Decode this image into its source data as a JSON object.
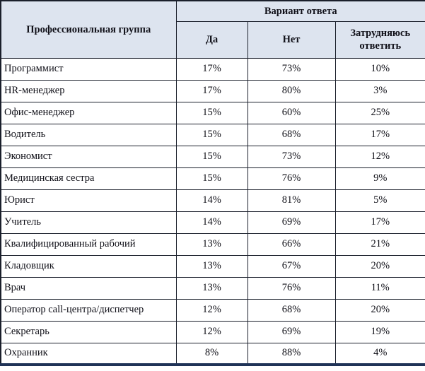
{
  "colors": {
    "header_bg": "#dde4ef",
    "grid_border": "#1a1f2b",
    "bottom_border": "#1f3357",
    "text": "#101018",
    "row_bg": "#ffffff"
  },
  "table": {
    "col1_header": "Профессиональная группа",
    "group_header": "Вариант ответа",
    "sub_headers": [
      "Да",
      "Нет",
      "Затрудняюсь ответить"
    ],
    "rows": [
      {
        "label": "Программист",
        "yes": "17%",
        "no": "73%",
        "dk": "10%"
      },
      {
        "label": "HR-менеджер",
        "yes": "17%",
        "no": "80%",
        "dk": "3%"
      },
      {
        "label": "Офис-менеджер",
        "yes": "15%",
        "no": "60%",
        "dk": "25%"
      },
      {
        "label": "Водитель",
        "yes": "15%",
        "no": "68%",
        "dk": "17%"
      },
      {
        "label": "Экономист",
        "yes": "15%",
        "no": "73%",
        "dk": "12%"
      },
      {
        "label": "Медицинская сестра",
        "yes": "15%",
        "no": "76%",
        "dk": "9%"
      },
      {
        "label": "Юрист",
        "yes": "14%",
        "no": "81%",
        "dk": "5%"
      },
      {
        "label": "Учитель",
        "yes": "14%",
        "no": "69%",
        "dk": "17%"
      },
      {
        "label": "Квалифицированный рабочий",
        "yes": "13%",
        "no": "66%",
        "dk": "21%"
      },
      {
        "label": "Кладовщик",
        "yes": "13%",
        "no": "67%",
        "dk": "20%"
      },
      {
        "label": "Врач",
        "yes": "13%",
        "no": "76%",
        "dk": "11%"
      },
      {
        "label": "Оператор call-центра/диспетчер",
        "yes": "12%",
        "no": "68%",
        "dk": "20%"
      },
      {
        "label": "Секретарь",
        "yes": "12%",
        "no": "69%",
        "dk": "19%"
      },
      {
        "label": "Охранник",
        "yes": "8%",
        "no": "88%",
        "dk": "4%"
      }
    ]
  },
  "chart_data": {
    "type": "table",
    "title": "",
    "columns": [
      "Профессиональная группа",
      "Да",
      "Нет",
      "Затрудняюсь ответить"
    ],
    "rows": [
      [
        "Программист",
        "17%",
        "73%",
        "10%"
      ],
      [
        "HR-менеджер",
        "17%",
        "80%",
        "3%"
      ],
      [
        "Офис-менеджер",
        "15%",
        "60%",
        "25%"
      ],
      [
        "Водитель",
        "15%",
        "68%",
        "17%"
      ],
      [
        "Экономист",
        "15%",
        "73%",
        "12%"
      ],
      [
        "Медицинская сестра",
        "15%",
        "76%",
        "9%"
      ],
      [
        "Юрист",
        "14%",
        "81%",
        "5%"
      ],
      [
        "Учитель",
        "14%",
        "69%",
        "17%"
      ],
      [
        "Квалифицированный рабочий",
        "13%",
        "66%",
        "21%"
      ],
      [
        "Кладовщик",
        "13%",
        "67%",
        "20%"
      ],
      [
        "Врач",
        "13%",
        "76%",
        "11%"
      ],
      [
        "Оператор call-центра/диспетчер",
        "12%",
        "68%",
        "20%"
      ],
      [
        "Секретарь",
        "12%",
        "69%",
        "19%"
      ],
      [
        "Охранник",
        "8%",
        "88%",
        "4%"
      ]
    ]
  }
}
